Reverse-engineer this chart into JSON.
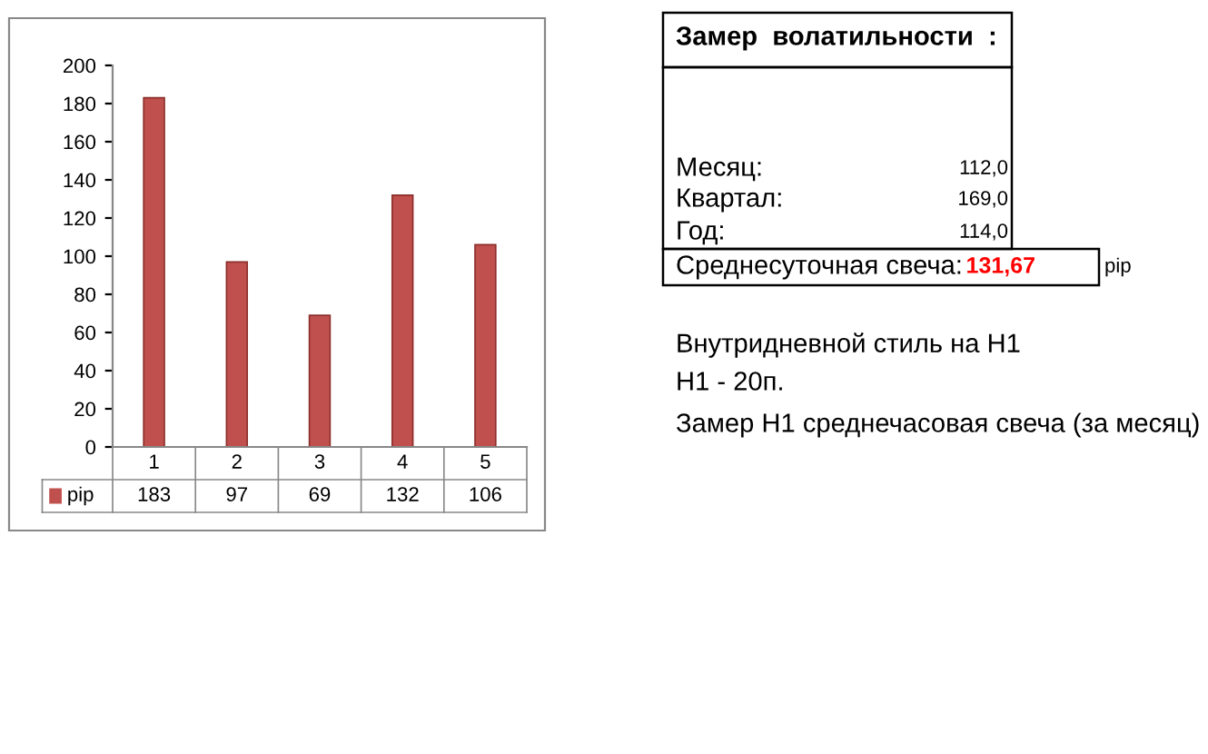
{
  "chart_data": {
    "type": "bar",
    "categories": [
      "1",
      "2",
      "3",
      "4",
      "5"
    ],
    "series": [
      {
        "name": "pip",
        "color": "#c0504d",
        "values": [
          183,
          97,
          69,
          132,
          106
        ]
      }
    ],
    "ylim": [
      0,
      200
    ],
    "yticks": [
      0,
      20,
      40,
      60,
      80,
      100,
      120,
      140,
      160,
      180,
      200
    ],
    "grid": false,
    "legend": "bottom",
    "data_labels": true,
    "annotations": [
      "Замер  волатильности  :",
      "Месяц:",
      "112,0",
      "Квартал:",
      "169,0",
      "Год:",
      "114,0",
      "Среднесуточная свеча:",
      "131,67",
      "pip",
      "Внутридневной стиль на Н1",
      "Н1 - 20п.",
      "Замер Н1 среднечасовая свеча (за месяц)"
    ]
  }
}
